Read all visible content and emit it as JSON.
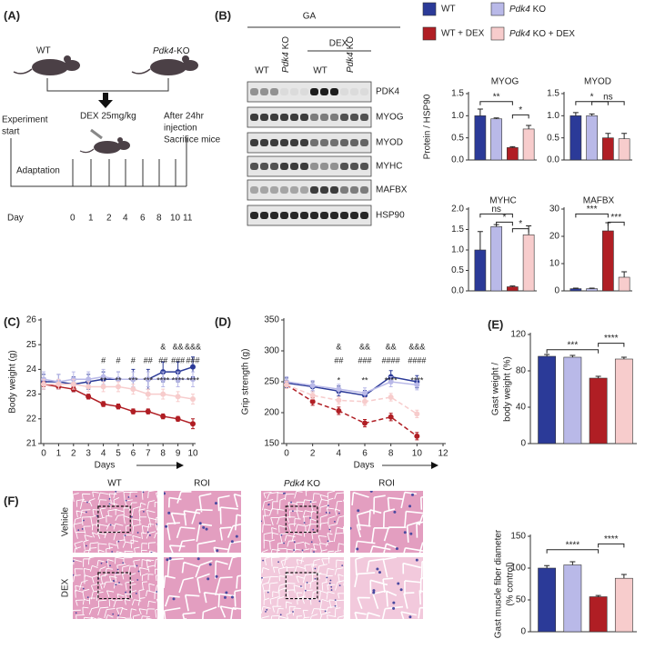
{
  "panel_labels": [
    "(A)",
    "(B)",
    "(C)",
    "(D)",
    "(E)",
    "(F)"
  ],
  "schematic": {
    "mice": [
      "WT",
      "Pdk4-KO"
    ],
    "treatment": "DEX 25mg/kg",
    "start": [
      "Experiment",
      "start"
    ],
    "phase": "Adaptation",
    "end": [
      "After 24hr",
      "injection",
      "Sacrifice mice"
    ],
    "day_label": "Day",
    "days": [
      "0",
      "1",
      "2",
      "4",
      "6",
      "8",
      "10",
      "11"
    ]
  },
  "blot": {
    "tissue": "GA",
    "treatment": "DEX",
    "lanes": [
      "WT",
      "Pdk4 KO",
      "WT",
      "Pdk4 KO"
    ],
    "proteins": [
      "PDK4",
      "MYOG",
      "MYOD",
      "MYHC",
      "MAFBX",
      "HSP90"
    ]
  },
  "legend": [
    {
      "name": "WT",
      "color": "#2b3a98"
    },
    {
      "name": "Pdk4 KO",
      "color": "#b9b9e8"
    },
    {
      "name": "WT + DEX",
      "color": "#b01e24"
    },
    {
      "name": "Pdk4 KO + DEX",
      "color": "#f7cccc"
    }
  ],
  "chart_data": [
    {
      "type": "bar",
      "title": "MYOG",
      "ylabel": "Protein / HSP90",
      "values": [
        1.0,
        0.93,
        0.28,
        0.7
      ],
      "errors": [
        0.15,
        0.02,
        0.02,
        0.08
      ],
      "ylim": [
        0,
        1.5
      ],
      "yticks": [
        {
          "value": 0,
          "label": "0.0"
        },
        0.5,
        {
          "value": 1,
          "label": "1.0"
        },
        1.5
      ],
      "annotations": [
        "**",
        "*"
      ]
    },
    {
      "type": "bar",
      "title": "MYOD",
      "values": [
        1.0,
        1.0,
        0.5,
        0.48
      ],
      "errors": [
        0.07,
        0.04,
        0.1,
        0.12
      ],
      "ylim": [
        0,
        1.5
      ],
      "yticks": [
        {
          "value": 0,
          "label": "0.0"
        },
        0.5,
        {
          "value": 1,
          "label": "1.0"
        },
        1.5
      ],
      "annotations": [
        "*",
        "ns"
      ]
    },
    {
      "type": "bar",
      "title": "MYHC",
      "values": [
        1.0,
        1.57,
        0.1,
        1.37
      ],
      "errors": [
        0.45,
        0.05,
        0.02,
        0.22
      ],
      "ylim": [
        0,
        2
      ],
      "yticks": [
        {
          "value": 0,
          "label": "0.0"
        },
        0.5,
        {
          "value": 1,
          "label": "1.0"
        },
        1.5,
        {
          "value": 2,
          "label": "2.0"
        }
      ],
      "annotations": [
        "ns",
        "*",
        "*"
      ]
    },
    {
      "type": "bar",
      "title": "MAFBX",
      "values": [
        0.8,
        0.8,
        22,
        5
      ],
      "errors": [
        0.2,
        0.2,
        3,
        2
      ],
      "ylim": [
        0,
        30
      ],
      "yticks": [
        0,
        10,
        20,
        30
      ],
      "annotations": [
        "***",
        "***"
      ]
    },
    {
      "type": "line",
      "ylabel": "Body weight (g)",
      "xlabel": "Days",
      "x": [
        0,
        1,
        2,
        3,
        4,
        5,
        6,
        7,
        8,
        9,
        10
      ],
      "xlim": [
        0,
        10
      ],
      "xticks": [
        0,
        1,
        2,
        3,
        4,
        5,
        6,
        7,
        8,
        9,
        10
      ],
      "ylim": [
        21,
        26
      ],
      "yticks": [
        21,
        22,
        23,
        24,
        25,
        26
      ],
      "series": [
        {
          "dash": false,
          "values": [
            23.5,
            23.5,
            23.4,
            23.5,
            23.6,
            23.6,
            23.6,
            23.6,
            23.9,
            23.9,
            24.1
          ],
          "errors": [
            0.3,
            0.3,
            0.3,
            0.3,
            0.3,
            0.3,
            0.4,
            0.4,
            0.4,
            0.4,
            0.4
          ]
        },
        {
          "dash": false,
          "values": [
            23.6,
            23.5,
            23.6,
            23.6,
            23.7,
            23.6,
            23.6,
            23.6,
            23.6,
            23.6,
            23.6
          ],
          "errors": [
            0.3,
            0.3,
            0.3,
            0.3,
            0.3,
            0.3,
            0.3,
            0.3,
            0.3,
            0.3,
            0.3
          ]
        },
        {
          "dash": false,
          "values": [
            23.4,
            23.3,
            23.2,
            22.9,
            22.6,
            22.5,
            22.3,
            22.3,
            22.1,
            22.0,
            21.8
          ],
          "errors": [
            0.1,
            0.1,
            0.1,
            0.1,
            0.1,
            0.1,
            0.1,
            0.1,
            0.1,
            0.1,
            0.2
          ]
        },
        {
          "dash": false,
          "values": [
            23.4,
            23.4,
            23.4,
            23.3,
            23.3,
            23.3,
            23.2,
            23.0,
            23.0,
            22.9,
            22.8
          ],
          "errors": [
            0.2,
            0.2,
            0.2,
            0.2,
            0.2,
            0.2,
            0.2,
            0.2,
            0.2,
            0.2,
            0.2
          ]
        }
      ],
      "annotation_rows": [
        [
          null,
          null,
          null,
          null,
          null,
          null,
          null,
          null,
          "&",
          "&&",
          "&&&"
        ],
        [
          null,
          null,
          null,
          null,
          "#",
          "#",
          "#",
          "##",
          "##",
          "###",
          "###"
        ],
        [
          null,
          null,
          null,
          null,
          "**",
          "**",
          "***",
          "***",
          "****",
          "****",
          "****"
        ]
      ]
    },
    {
      "type": "line",
      "ylabel": "Grip strength (g)",
      "xlabel": "Days",
      "x": [
        0,
        2,
        4,
        6,
        8,
        10
      ],
      "xlim": [
        0,
        12
      ],
      "xticks": [
        0,
        2,
        4,
        6,
        8,
        10,
        12
      ],
      "ylim": [
        150,
        350
      ],
      "yticks": [
        150,
        200,
        250,
        300,
        350
      ],
      "series": [
        {
          "dash": false,
          "values": [
            248,
            242,
            235,
            228,
            258,
            250
          ],
          "errors": [
            8,
            8,
            8,
            8,
            10,
            10
          ]
        },
        {
          "dash": false,
          "values": [
            250,
            244,
            238,
            232,
            250,
            245
          ],
          "errors": [
            8,
            8,
            8,
            8,
            8,
            8
          ]
        },
        {
          "dash": true,
          "values": [
            245,
            218,
            203,
            183,
            193,
            162
          ],
          "errors": [
            6,
            6,
            6,
            6,
            6,
            6
          ]
        },
        {
          "dash": true,
          "values": [
            245,
            228,
            220,
            218,
            225,
            198
          ],
          "errors": [
            6,
            6,
            6,
            6,
            6,
            6
          ]
        }
      ],
      "annotation_rows": [
        [
          null,
          null,
          "&",
          "&&",
          "&&",
          "&&&"
        ],
        [
          null,
          null,
          "##",
          "###",
          "####",
          "####"
        ],
        [
          null,
          null,
          "*",
          "**",
          "****",
          "****"
        ]
      ]
    },
    {
      "type": "bar",
      "ylabel": [
        "Gast weight /",
        "body weight  (%)"
      ],
      "values": [
        96,
        95,
        72,
        93
      ],
      "errors": [
        2,
        2,
        2,
        2
      ],
      "ylim": [
        0,
        120
      ],
      "yticks": [
        0,
        40,
        80,
        120
      ],
      "annotations": [
        "***",
        "****"
      ]
    },
    {
      "type": "bar",
      "ylabel": [
        "Gast muscle fiber diameter",
        "(% control)"
      ],
      "values": [
        100,
        105,
        55,
        84
      ],
      "errors": [
        4,
        5,
        2,
        6
      ],
      "ylim": [
        0,
        150
      ],
      "yticks": [
        0,
        50,
        100,
        150
      ],
      "annotations": [
        "****",
        "****"
      ]
    }
  ],
  "histology": {
    "columns": [
      "WT",
      "ROI",
      "Pdk4 KO",
      "ROI"
    ],
    "rows": [
      "Vehicle",
      "DEX"
    ]
  }
}
